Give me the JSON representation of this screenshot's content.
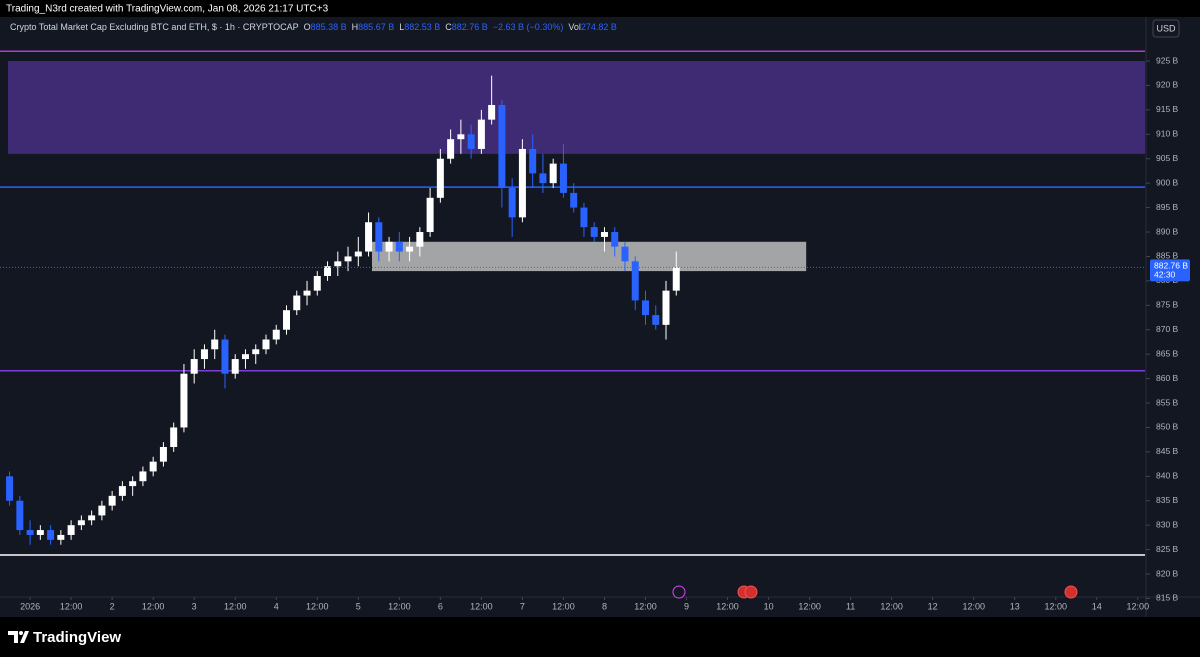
{
  "header": {
    "credit": "Trading_N3rd created with TradingView.com, Jan 08, 2026 21:17 UTC+3"
  },
  "legend": {
    "symbol": "Crypto Total Market Cap Excluding BTC and ETH, $ · 1h · CRYPTOCAP",
    "open_label": "O",
    "open": "885.38 B",
    "high_label": "H",
    "high": "885.67 B",
    "low_label": "L",
    "low": "882.53 B",
    "close_label": "C",
    "close": "882.76 B",
    "change": "−2.63 B (−0.30%)",
    "volume_label": "Vol",
    "volume": "274.82 B"
  },
  "currency": "USD",
  "price_tag": {
    "price": "882.76 B",
    "countdown": "42:30"
  },
  "footer": {
    "brand": "TradingView"
  },
  "chart_data": {
    "type": "candlestick",
    "up_color": "#ffffff",
    "down_color": "#2962ff",
    "x": [
      -6,
      -3,
      0,
      3,
      6,
      9,
      12,
      15,
      18,
      21,
      24,
      27,
      30,
      33,
      36,
      39,
      42,
      45,
      48,
      51,
      54,
      57,
      60,
      63,
      66,
      69,
      72,
      75,
      78,
      81,
      84,
      87,
      90,
      93,
      96,
      99,
      102,
      105,
      108,
      111,
      114,
      117,
      120,
      123,
      126,
      129,
      132,
      135,
      138,
      141,
      144,
      147,
      150,
      153,
      156,
      159,
      162,
      165,
      168,
      171,
      174,
      177,
      180,
      183,
      186,
      189
    ],
    "open": [
      840,
      835,
      829,
      828,
      829,
      827,
      828,
      830,
      831,
      832,
      834,
      836,
      838,
      839,
      841,
      843,
      846,
      850,
      861,
      864,
      866,
      868,
      861,
      864,
      865,
      866,
      868,
      870,
      874,
      877,
      878,
      881,
      883,
      884,
      885,
      886,
      892,
      886,
      888,
      886,
      887,
      890,
      897,
      905,
      909,
      910,
      907,
      913,
      916,
      899,
      893,
      907,
      902,
      900,
      904,
      898,
      895,
      891,
      889,
      890,
      887,
      884,
      876,
      873,
      871,
      878
    ],
    "high": [
      841,
      836,
      831,
      830,
      830,
      829,
      831,
      832,
      833,
      835,
      837,
      839,
      840,
      842,
      844,
      847,
      851,
      863,
      866,
      867,
      870,
      869,
      865,
      866,
      867,
      869,
      871,
      875,
      878,
      880,
      882,
      884,
      886,
      887,
      889,
      894,
      893,
      889,
      890,
      889,
      891,
      899,
      907,
      911,
      913,
      912,
      915,
      922,
      917,
      901,
      909,
      910,
      906,
      905,
      908,
      900,
      896,
      892,
      891,
      891,
      888,
      885,
      878,
      875,
      880,
      886
    ],
    "low": [
      834,
      828,
      826,
      827,
      826,
      826,
      827,
      829,
      830,
      831,
      833,
      835,
      836,
      838,
      840,
      842,
      845,
      849,
      859,
      862,
      864,
      858,
      860,
      862,
      863,
      865,
      867,
      869,
      873,
      875,
      877,
      880,
      881,
      882,
      883,
      885,
      884,
      884,
      884,
      884,
      885,
      889,
      896,
      904,
      906,
      905,
      906,
      912,
      895,
      889,
      892,
      899,
      898,
      899,
      897,
      894,
      889,
      888,
      886,
      885,
      882,
      874,
      871,
      870,
      868,
      877
    ],
    "close": [
      835,
      829,
      828,
      829,
      827,
      828,
      830,
      831,
      832,
      834,
      836,
      838,
      839,
      841,
      843,
      846,
      850,
      861,
      864,
      866,
      868,
      861,
      864,
      865,
      866,
      868,
      870,
      874,
      877,
      878,
      881,
      883,
      884,
      885,
      886,
      892,
      886,
      888,
      886,
      887,
      890,
      897,
      905,
      909,
      910,
      907,
      913,
      916,
      899,
      893,
      907,
      902,
      900,
      904,
      898,
      895,
      891,
      889,
      890,
      887,
      884,
      876,
      873,
      871,
      878,
      882.76
    ],
    "bands": [
      {
        "from": 906,
        "to": 925,
        "color": "#3f2b74"
      }
    ],
    "boxes": [
      {
        "x": [
          100,
          227
        ],
        "y": [
          882,
          888
        ],
        "color": "#b4b4b4"
      }
    ],
    "levels": [
      {
        "value": 927,
        "color": "#b03bd4"
      },
      {
        "value": 899.2,
        "color": "#2962ff"
      },
      {
        "value": 861.6,
        "color": "#7b3fd8"
      },
      {
        "value": 823.9,
        "color": "#ffffff"
      }
    ],
    "last_price": 882.76,
    "xlim": [
      -8.8,
      326.1
    ],
    "xticks": [
      {
        "value": 0,
        "label": "2026"
      },
      {
        "value": 12,
        "label": "12:00"
      },
      {
        "value": 24,
        "label": "2"
      },
      {
        "value": 36,
        "label": "12:00"
      },
      {
        "value": 48,
        "label": "3"
      },
      {
        "value": 60,
        "label": "12:00"
      },
      {
        "value": 72,
        "label": "4"
      },
      {
        "value": 84,
        "label": "12:00"
      },
      {
        "value": 96,
        "label": "5"
      },
      {
        "value": 108,
        "label": "12:00"
      },
      {
        "value": 120,
        "label": "6"
      },
      {
        "value": 132,
        "label": "12:00"
      },
      {
        "value": 144,
        "label": "7"
      },
      {
        "value": 156,
        "label": "12:00"
      },
      {
        "value": 168,
        "label": "8"
      },
      {
        "value": 180,
        "label": "12:00"
      },
      {
        "value": 192,
        "label": "9"
      },
      {
        "value": 204,
        "label": "12:00"
      },
      {
        "value": 216,
        "label": "10"
      },
      {
        "value": 228,
        "label": "12:00"
      },
      {
        "value": 240,
        "label": "11"
      },
      {
        "value": 252,
        "label": "12:00"
      },
      {
        "value": 264,
        "label": "12"
      },
      {
        "value": 276,
        "label": "12:00"
      },
      {
        "value": 288,
        "label": "13"
      },
      {
        "value": 300,
        "label": "12:00"
      },
      {
        "value": 312,
        "label": "14"
      },
      {
        "value": 324,
        "label": "12:00"
      }
    ],
    "ylim": [
      815.3,
      929.3
    ],
    "yticks": [
      {
        "value": 925,
        "label": "925 B"
      },
      {
        "value": 920,
        "label": "920 B"
      },
      {
        "value": 915,
        "label": "915 B"
      },
      {
        "value": 910,
        "label": "910 B"
      },
      {
        "value": 905,
        "label": "905 B"
      },
      {
        "value": 900,
        "label": "900 B"
      },
      {
        "value": 895,
        "label": "895 B"
      },
      {
        "value": 890,
        "label": "890 B"
      },
      {
        "value": 885,
        "label": "885 B"
      },
      {
        "value": 880,
        "label": "880 B"
      },
      {
        "value": 875,
        "label": "875 B"
      },
      {
        "value": 870,
        "label": "870 B"
      },
      {
        "value": 865,
        "label": "865 B"
      },
      {
        "value": 860,
        "label": "860 B"
      },
      {
        "value": 855,
        "label": "855 B"
      },
      {
        "value": 850,
        "label": "850 B"
      },
      {
        "value": 845,
        "label": "845 B"
      },
      {
        "value": 840,
        "label": "840 B"
      },
      {
        "value": 835,
        "label": "835 B"
      },
      {
        "value": 830,
        "label": "830 B"
      },
      {
        "value": 825,
        "label": "825 B"
      },
      {
        "value": 820,
        "label": "820 B"
      },
      {
        "value": 815,
        "label": "815 B"
      }
    ]
  }
}
